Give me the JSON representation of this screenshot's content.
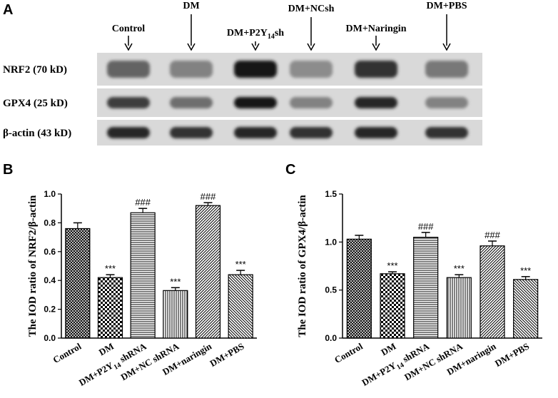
{
  "blot": {
    "panel_label": "A",
    "lanes": [
      {
        "label": "Control"
      },
      {
        "label": "DM"
      },
      {
        "label": "DM+P2Y",
        "sub": "14",
        "suffix": "sh"
      },
      {
        "label": "DM+NCsh"
      },
      {
        "label": "DM+Naringin"
      },
      {
        "label": "DM+PBS"
      }
    ],
    "rows": [
      {
        "label": "NRF2 (70 kD)",
        "intensity": [
          0.55,
          0.4,
          0.95,
          0.35,
          0.8,
          0.45
        ]
      },
      {
        "label": "GPX4 (25 kD)",
        "intensity": [
          0.75,
          0.5,
          0.95,
          0.4,
          0.85,
          0.4
        ]
      },
      {
        "label": "β-actin (43 kD)",
        "intensity": [
          0.85,
          0.8,
          0.85,
          0.8,
          0.85,
          0.8
        ]
      }
    ]
  },
  "chart_data": [
    {
      "panel_label": "B",
      "type": "bar",
      "ylabel": "The IOD ratio of NRF2/β-actin",
      "ylim": [
        0.0,
        1.0
      ],
      "yticks": [
        "0.0",
        "0.2",
        "0.4",
        "0.6",
        "0.8",
        "1.0"
      ],
      "ytick_values": [
        0.0,
        0.2,
        0.4,
        0.6,
        0.8,
        1.0
      ],
      "categories": [
        "Control",
        "DM",
        "DM+P2Y14 shRNA",
        "DM+NC shRNA",
        "DM+naringin",
        "DM+PBS"
      ],
      "category_parts": [
        [
          "Control",
          "",
          ""
        ],
        [
          "DM",
          "",
          ""
        ],
        [
          "DM+P2Y",
          "14",
          " shRNA"
        ],
        [
          "DM+NC shRNA",
          "",
          ""
        ],
        [
          "DM+naringin",
          "",
          ""
        ],
        [
          "DM+PBS",
          "",
          ""
        ]
      ],
      "values": [
        0.76,
        0.42,
        0.87,
        0.33,
        0.92,
        0.44
      ],
      "errors": [
        0.04,
        0.02,
        0.03,
        0.02,
        0.02,
        0.03
      ],
      "annotations": [
        "",
        "***",
        "###",
        "***",
        "###",
        "***"
      ],
      "patterns": [
        "crosshatch",
        "checker",
        "hlines",
        "vlines",
        "diag-right",
        "diag-left"
      ]
    },
    {
      "panel_label": "C",
      "type": "bar",
      "ylabel": "The IOD ratio of GPX4/β-actin",
      "ylim": [
        0.0,
        1.5
      ],
      "yticks": [
        "0.0",
        "0.5",
        "1.0",
        "1.5"
      ],
      "ytick_values": [
        0.0,
        0.5,
        1.0,
        1.5
      ],
      "categories": [
        "Control",
        "DM",
        "DM+P2Y14 shRNA",
        "DM+NC shRNA",
        "DM+naringin",
        "DM+PBS"
      ],
      "category_parts": [
        [
          "Control",
          "",
          ""
        ],
        [
          "DM",
          "",
          ""
        ],
        [
          "DM+P2Y",
          "14",
          " shRNA"
        ],
        [
          "DM+NC shRNA",
          "",
          ""
        ],
        [
          "DM+naringin",
          "",
          ""
        ],
        [
          "DM+PBS",
          "",
          ""
        ]
      ],
      "values": [
        1.03,
        0.67,
        1.05,
        0.63,
        0.96,
        0.61
      ],
      "errors": [
        0.04,
        0.02,
        0.05,
        0.03,
        0.05,
        0.03
      ],
      "annotations": [
        "",
        "***",
        "###",
        "***",
        "###",
        "***"
      ],
      "patterns": [
        "crosshatch",
        "checker",
        "hlines",
        "vlines",
        "diag-right",
        "diag-left"
      ]
    }
  ]
}
